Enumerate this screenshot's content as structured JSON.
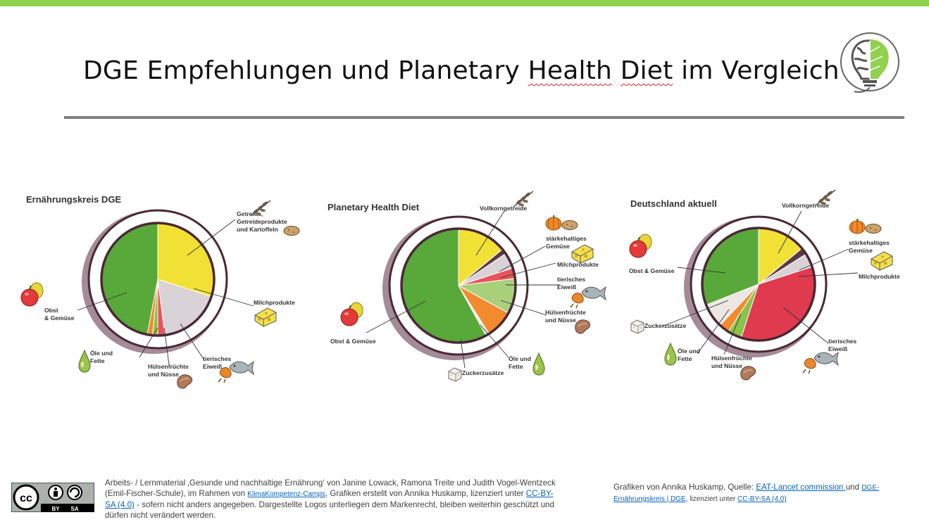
{
  "title": {
    "part1": "DGE Empfehlungen und Planetary ",
    "part2": "Health",
    "part3": " ",
    "part4": "Diet",
    "part5": " im Vergleich"
  },
  "colors": {
    "top_bar": "#92d050",
    "rule": "#7f7f7f",
    "ring": "#4a2836",
    "link": "#0563c1"
  },
  "icons": [
    "brain-plant-logo-icon",
    "wheat-icon",
    "potato-icon",
    "pumpkin-icon",
    "cheese-icon",
    "apple-pear-icon",
    "oil-drop-icon",
    "bean-icon",
    "fish-chicken-icon",
    "sugar-cube-icon",
    "cc-by-sa-icon"
  ],
  "chart_data": [
    {
      "type": "pie",
      "title": "Ernährungskreis DGE",
      "slices": [
        {
          "label": "Getreide, Getreideprodukte und Kartoffeln",
          "value": 30,
          "color": "#f2e135"
        },
        {
          "label": "Milchprodukte",
          "value": 18,
          "color": "#d9d2d6"
        },
        {
          "label": "tierisches Eiweiß",
          "value": 2,
          "color": "#e8535c"
        },
        {
          "label": "Hülsenfrüchte und Nüsse",
          "value": 1.5,
          "color": "#8bc34a"
        },
        {
          "label": "Öle und Fette",
          "value": 1.5,
          "color": "#f28a2e"
        },
        {
          "label": "Obst & Gemüse",
          "value": 47,
          "color": "#58a93a"
        }
      ]
    },
    {
      "type": "pie",
      "title": "Planetary Health Diet",
      "slices": [
        {
          "label": "Vollkorngetreide",
          "value": 14,
          "color": "#f2e135"
        },
        {
          "label": "stärkehaltiges Gemüse",
          "value": 1.5,
          "color": "#5b3a45"
        },
        {
          "label": "Milchprodukte",
          "value": 4.5,
          "color": "#d9d2d6"
        },
        {
          "label": "tierisches Eiweiß",
          "value": 3,
          "color": "#e8535c"
        },
        {
          "label": "Hülsenfrüchte und Nüsse",
          "value": 10,
          "color": "#a8d07a"
        },
        {
          "label": "Öle und Fette",
          "value": 8,
          "color": "#f28a2e"
        },
        {
          "label": "Zuckerzusätze",
          "value": 1,
          "color": "#ece7e3"
        },
        {
          "label": "Obst & Gemüse",
          "value": 58,
          "color": "#58a93a"
        }
      ]
    },
    {
      "type": "pie",
      "title": "Deutschland aktuell",
      "slices": [
        {
          "label": "Vollkorngetreide",
          "value": 14,
          "color": "#f2e135"
        },
        {
          "label": "stärkehaltiges Gemüse",
          "value": 2,
          "color": "#5b3a45"
        },
        {
          "label": "Milchprodukte",
          "value": 4,
          "color": "#d9d2d6"
        },
        {
          "label": "tierisches Eiweiß",
          "value": 35,
          "color": "#e03a4e"
        },
        {
          "label": "Hülsenfrüchte und Nüsse",
          "value": 4,
          "color": "#8bc34a"
        },
        {
          "label": "Öle und Fette",
          "value": 3,
          "color": "#f28a2e"
        },
        {
          "label": "Zuckerzusätze",
          "value": 7,
          "color": "#ece7e3"
        },
        {
          "label": "Obst & Gemüse",
          "value": 31,
          "color": "#58a93a"
        }
      ]
    }
  ],
  "labels": {
    "c1": [
      "Getreide,",
      "Getreideprodukte",
      "und Kartoffeln",
      "Milchprodukte",
      "tierisches",
      "Eiweiß",
      "Hülsenfrüchte",
      "und Nüsse",
      "Öle und",
      "Fette",
      "Obst",
      "& Gemüse"
    ],
    "c2": [
      "Vollkorngetreide",
      "stärkehaltiges",
      "Gemüse",
      "Milchprodukte",
      "tierisches",
      "Eiweiß",
      "Hülsenfrüchte",
      "und Nüsse",
      "Öle und",
      "Fette",
      "Zuckerzusätze",
      "Obst & Gemüse"
    ],
    "c3": [
      "Vollkorngetreide",
      "stärkehaltiges",
      "Gemüse",
      "Milchprodukte",
      "tierisches",
      "Eiweiß",
      "Hülsenfrüchte",
      "und Nüsse",
      "Öle und",
      "Fette",
      "Zuckerzusätze",
      "Obst & Gemüse"
    ]
  },
  "footer": {
    "left_1": "Arbeits- / Lernmaterial ‚Gesunde und nachhaltige Ernährung‘ von Janine Lowack, Ramona Treite und Judith Vogel-Wentzeck",
    "left_2a": "(Emil-Fischer-Schule), im Rahmen von ",
    "left_2_link": "KlimaKompetenz-Camps",
    "left_2b": ", Grafiken erstellt von Annika Huskamp, lizenziert unter ",
    "left_2_link2a": "CC-BY-",
    "left_3_link2b": "SA (4.0)",
    "left_3": " - sofern nicht anders angegeben. Dargestellte Logos unterliegen dem Markenrecht, bleiben weiterhin geschützt und",
    "left_4": "dürfen nicht verändert werden.",
    "right_1a": "Grafiken von Annika Huskamp, Quelle: ",
    "right_1_link": "EAT-Lancet commission ",
    "right_1b": "und ",
    "right_1_link2": "DGE-",
    "right_2_link": "Ernährungskreis | DGE",
    "right_2a": ", lizenziert unter ",
    "right_2_link2": "CC-BY-SA (4.0)",
    "cc_by": "BY",
    "cc_sa": "SA"
  }
}
